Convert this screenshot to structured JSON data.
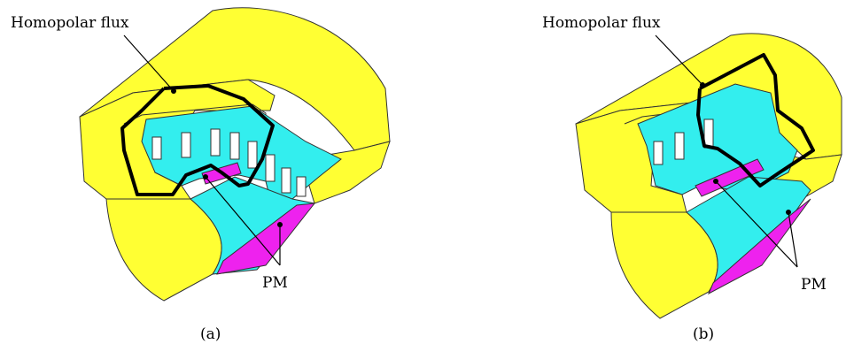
{
  "figures": [
    {
      "caption": "(a)",
      "flux_label": "Homopolar flux",
      "pm_label": "PM"
    },
    {
      "caption": "(b)",
      "flux_label": "Homopolar flux",
      "pm_label": "PM"
    }
  ],
  "colors": {
    "iron": "#ffff33",
    "core": "#33eeee",
    "magnet": "#ee22ee",
    "flux_path": "#000000",
    "outline": "#222222"
  }
}
